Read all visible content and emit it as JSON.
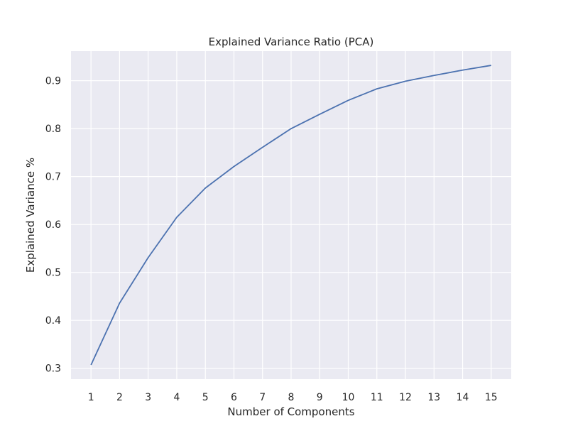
{
  "chart_data": {
    "type": "line",
    "title": "Explained Variance Ratio (PCA)",
    "xlabel": "Number of Components",
    "ylabel": "Explained Variance %",
    "x": [
      1,
      2,
      3,
      4,
      5,
      6,
      7,
      8,
      9,
      10,
      11,
      12,
      13,
      14,
      15
    ],
    "series": [
      {
        "values": [
          0.307,
          0.436,
          0.531,
          0.615,
          0.676,
          0.721,
          0.761,
          0.8,
          0.83,
          0.859,
          0.883,
          0.899,
          0.911,
          0.922,
          0.932
        ]
      }
    ],
    "xlim": [
      0.3,
      15.7
    ],
    "ylim": [
      0.2773,
      0.9617
    ],
    "x_ticks": [
      "1",
      "2",
      "3",
      "4",
      "5",
      "6",
      "7",
      "8",
      "9",
      "10",
      "11",
      "12",
      "13",
      "14",
      "15"
    ],
    "y_ticks": [
      "0.3",
      "0.4",
      "0.5",
      "0.6",
      "0.7",
      "0.8",
      "0.9"
    ],
    "grid": true,
    "background": "#eaeaf2",
    "grid_color": "#ffffff",
    "line_color": "#4c72b0"
  }
}
